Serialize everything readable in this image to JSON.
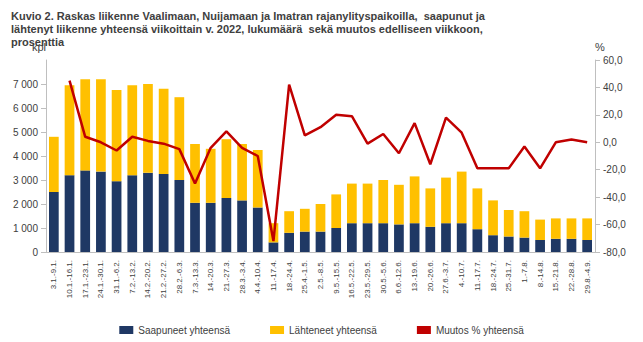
{
  "chart_data": {
    "type": "bar",
    "title": "Kuvio 2. Raskas liikenne Vaalimaan, Nuijamaan ja Imatran rajanylityspaikoilla,  saapunut ja\nlähtenyt liikenne yhteensä viikoittain v. 2022, lukumäärä  sekä muutos edelliseen viikkoon,\nprosenttia",
    "y_label": "kpl",
    "y2_label": "%",
    "stacked": true,
    "grid": false,
    "legend": "bottom",
    "categories": [
      "3.1.-9.1.",
      "10.1.-16.1.",
      "17.1.-23.1.",
      "24.1.-30.1.",
      "31.1.-6.2.",
      "7.2.-13.2.",
      "14.2.-20.2.",
      "21.2.-27.2.",
      "28.2.-6.3.",
      "7.3.-13.3.",
      "14.-20.3.",
      "21.-27.3.",
      "28.3.-3.4.",
      "4.4.-10.4.",
      "11.-17.4.",
      "18.-24.4.",
      "25.4.-1.5.",
      "2.5.-8.5.",
      "9.5.-15.5.",
      "16.5.-22.5.",
      "23.5.-29.5.",
      "30.5.-5.6.",
      "6.6.-12.6.",
      "13.-19.6.",
      "20.-26.6.",
      "27.6.-3.7.",
      "4.-10.7.",
      "11.-17.7.",
      "18.-24.7.",
      "25.-31.7.",
      "1.-7.8.",
      "8.-14.8.",
      "15.-21.8.",
      "22.-28.8.",
      "29.8.-4.9."
    ],
    "series": [
      {
        "name": "Saapuneet yhteensä",
        "type": "bar",
        "color": "#1f3864",
        "values": [
          2500,
          3200,
          3400,
          3350,
          2950,
          3200,
          3300,
          3250,
          3000,
          2050,
          2050,
          2250,
          2150,
          1850,
          400,
          800,
          850,
          850,
          1000,
          1200,
          1200,
          1200,
          1150,
          1200,
          1050,
          1200,
          1200,
          950,
          700,
          650,
          600,
          500,
          550,
          550,
          500
        ]
      },
      {
        "name": "Lähteneet yhteensä",
        "type": "bar",
        "color": "#ffc000",
        "values": [
          2300,
          3750,
          3800,
          3850,
          3800,
          3750,
          3700,
          3550,
          3450,
          2450,
          2250,
          2450,
          2350,
          2400,
          800,
          900,
          950,
          1150,
          1400,
          1650,
          1650,
          1800,
          1650,
          1950,
          1600,
          1900,
          2150,
          1700,
          1450,
          1100,
          1100,
          850,
          850,
          850,
          900
        ]
      },
      {
        "name": "Muutos % yhteensä",
        "type": "line",
        "axis": "y2",
        "color": "#c00000",
        "marker": "none",
        "line_style": "solid",
        "values": [
          null,
          45,
          4,
          0,
          -6,
          4,
          1,
          -1,
          -5,
          -30,
          -4,
          8,
          -4,
          -10,
          -72,
          42,
          5,
          11,
          20,
          19,
          -1,
          6,
          -8,
          14,
          -16,
          18,
          7,
          -19,
          -19,
          -19,
          -3,
          -19,
          0,
          2,
          0
        ]
      }
    ],
    "ylim": [
      0,
      8000
    ],
    "yticks": [
      0,
      {
        "value": 1000,
        "label": "1 000"
      },
      {
        "value": 2000,
        "label": "2 000"
      },
      {
        "value": 3000,
        "label": "3 000"
      },
      {
        "value": 4000,
        "label": "4 000"
      },
      {
        "value": 5000,
        "label": "5 000"
      },
      {
        "value": 6000,
        "label": "6 000"
      },
      {
        "value": 7000,
        "label": "7 000"
      }
    ],
    "y2lim": [
      -80,
      60
    ],
    "y2ticks": [
      {
        "value": -80,
        "label": "-80,0"
      },
      {
        "value": -60,
        "label": "-60,0"
      },
      {
        "value": -40,
        "label": "-40,0"
      },
      {
        "value": -20,
        "label": "-20,0"
      },
      {
        "value": 0,
        "label": "0,0"
      },
      {
        "value": 20,
        "label": "20,0"
      },
      {
        "value": 40,
        "label": "40,0"
      },
      {
        "value": 60,
        "label": "60,0"
      }
    ]
  }
}
